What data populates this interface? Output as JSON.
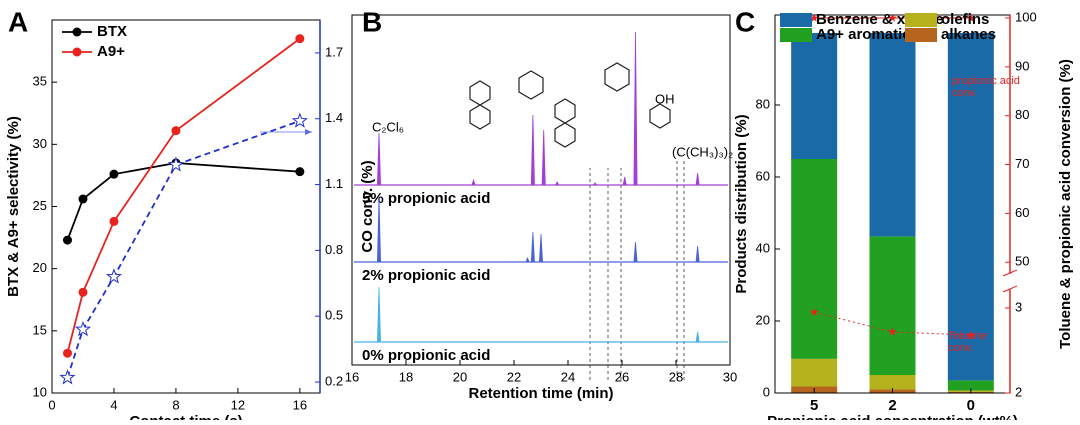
{
  "chart_data": [
    {
      "type": "line",
      "panel_label": "A",
      "xlabel": "Contact time (s)",
      "ylabel": "BTX & A9+ selectivity (%)",
      "y2label": "CO conv. (%)",
      "x": [
        1,
        2,
        4,
        8,
        16
      ],
      "series": [
        {
          "name": "BTX",
          "color": "#000000",
          "marker": "circle",
          "values": [
            22.3,
            25.6,
            27.6,
            28.5,
            27.8
          ]
        },
        {
          "name": "A9+",
          "color": "#e8231f",
          "marker": "circle",
          "values": [
            13.2,
            18.1,
            23.8,
            31.1,
            38.5
          ]
        },
        {
          "color": "#1f2fd0",
          "marker": "star",
          "linestyle": "dashed",
          "axis": "y2",
          "values": [
            0.22,
            0.44,
            0.68,
            1.19,
            1.39
          ]
        }
      ],
      "xlim": [
        0,
        17.3
      ],
      "xticks": [
        0,
        4,
        8,
        12,
        16
      ],
      "ylim": [
        10,
        40
      ],
      "yticks": [
        10,
        15,
        20,
        25,
        30,
        35
      ],
      "y2lim": [
        0.15,
        1.85
      ],
      "y2ticks": [
        0.2,
        0.5,
        0.8,
        1.1,
        1.4,
        1.7
      ],
      "legend": "upper left"
    },
    {
      "type": "chromatogram",
      "panel_label": "B",
      "xlabel": "Retention time (min)",
      "xlim": [
        16,
        30
      ],
      "xticks": [
        16,
        18,
        20,
        22,
        24,
        26,
        28,
        30
      ],
      "series": [
        {
          "name": "5% propionic acid",
          "color": "#a040d8",
          "peak_x": [
            17.0,
            20.5,
            22.7,
            23.1,
            23.6,
            25.0,
            26.1,
            26.5,
            28.8
          ],
          "peak_heights": [
            52,
            5,
            70,
            55,
            3,
            2,
            8,
            153,
            12
          ]
        },
        {
          "name": "2% propionic acid",
          "color": "#4a64d8",
          "peak_x": [
            17.0,
            22.5,
            22.7,
            23.0,
            26.5,
            28.8
          ],
          "peak_heights": [
            65,
            4,
            30,
            28,
            20,
            16
          ]
        },
        {
          "name": "0% propionic acid",
          "color": "#4ab0e8",
          "peak_x": [
            17.0,
            28.8
          ],
          "peak_heights": [
            55,
            10
          ]
        }
      ],
      "annotations": [
        "C₂Cl₆",
        "OH",
        "(C(CH₃)₃)₂"
      ]
    },
    {
      "type": "stacked_bar",
      "panel_label": "C",
      "xlabel": "Propionic acid concentration (wt%)",
      "ylabel": "Products distribution (%)",
      "y2label": "Toluene & propionic acid conversion (%)",
      "categories": [
        "5",
        "2",
        "0"
      ],
      "series": [
        {
          "name": "Benzene & xylene",
          "color": "#1a6aa8",
          "values": [
            35,
            56.5,
            96.5
          ]
        },
        {
          "name": "A9+ aromatics",
          "color": "#22a022",
          "values": [
            55.5,
            38.5,
            2.8
          ]
        },
        {
          "name": "olefins",
          "color": "#b5b21e",
          "values": [
            7.7,
            4,
            0.4
          ]
        },
        {
          "name": "alkanes",
          "color": "#b5651d",
          "values": [
            1.8,
            1,
            0.3
          ]
        }
      ],
      "lines": [
        {
          "name": "propionic acid conv.",
          "color": "#e8231f",
          "axis": "y2",
          "values": [
            100,
            100,
            100
          ]
        },
        {
          "name": "Toluene conv.",
          "color": "#e8231f",
          "axis": "y2",
          "linestyle": "dotted",
          "values": [
            2.95,
            2.72,
            2.68
          ]
        }
      ],
      "ylim": [
        0,
        105
      ],
      "yticks": [
        0,
        20,
        40,
        60,
        80
      ],
      "y2lim": [
        2,
        100
      ],
      "y2break": [
        3.2,
        48
      ],
      "y2ticks": [
        2,
        3,
        50,
        60,
        70,
        80,
        90,
        100
      ],
      "legend": "top"
    }
  ]
}
